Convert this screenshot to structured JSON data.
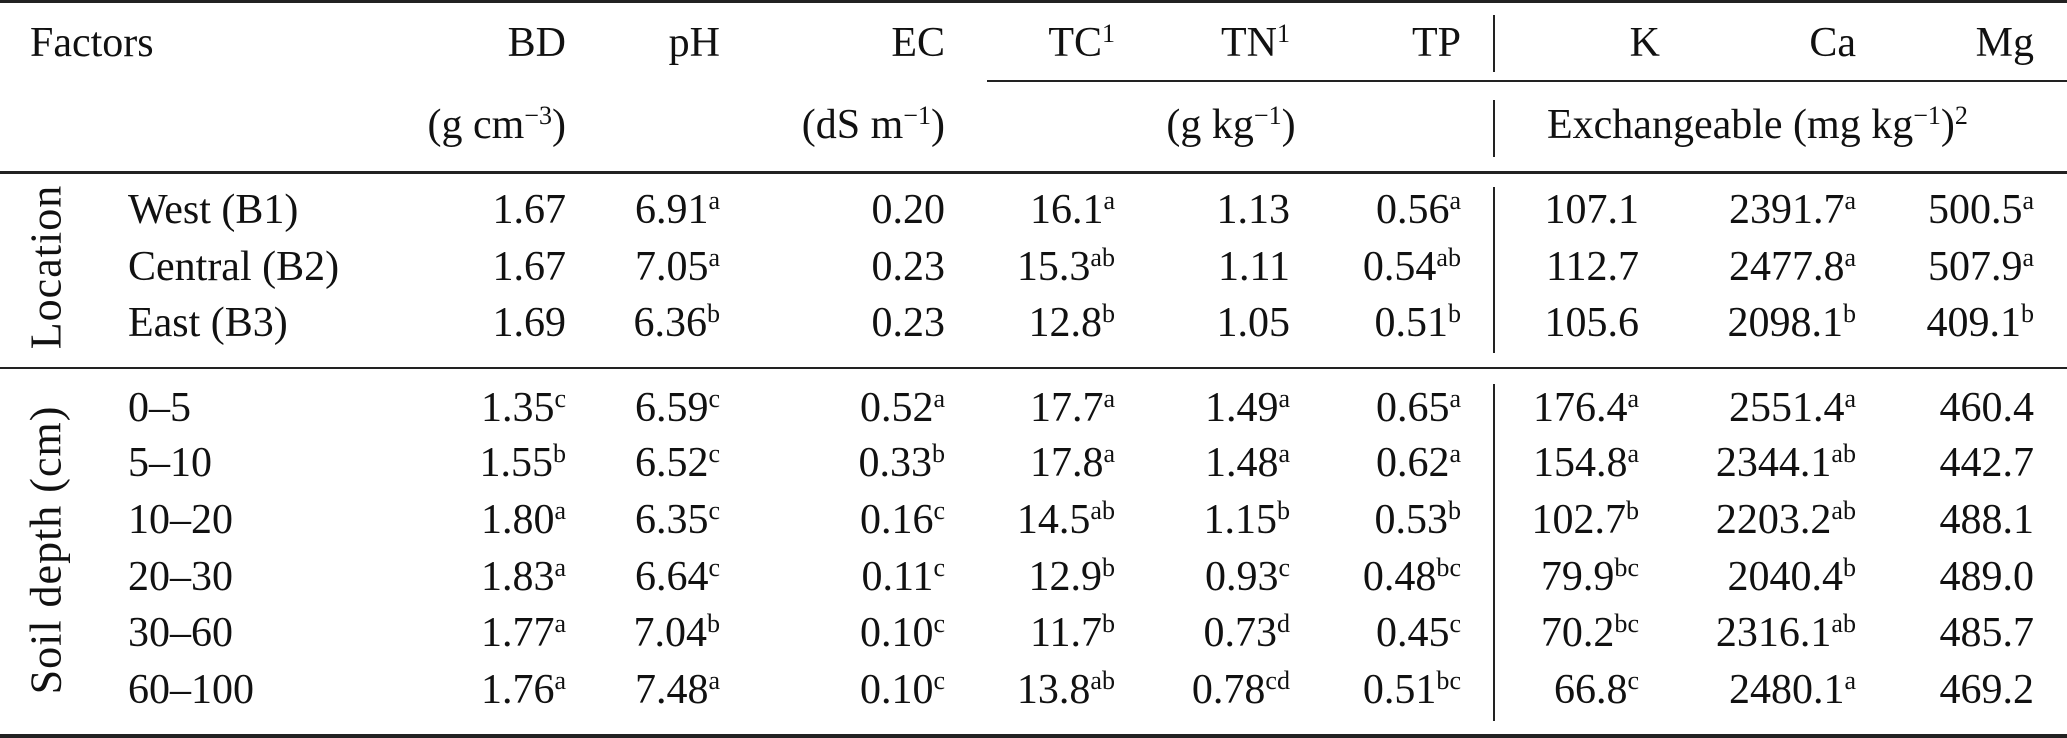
{
  "header": {
    "factors": "Factors",
    "columns": [
      {
        "label": "BD",
        "sup": ""
      },
      {
        "label": "pH",
        "sup": ""
      },
      {
        "label": "EC",
        "sup": ""
      },
      {
        "label": "TC",
        "sup": "1"
      },
      {
        "label": "TN",
        "sup": "1"
      },
      {
        "label": "TP",
        "sup": ""
      },
      {
        "label": "K",
        "sup": ""
      },
      {
        "label": "Ca",
        "sup": ""
      },
      {
        "label": "Mg",
        "sup": ""
      }
    ],
    "units": {
      "bd": {
        "pre": "(g cm",
        "sup": "−3",
        "post": ")"
      },
      "ec": {
        "pre": "(dS m",
        "sup": "−1",
        "post": ")"
      },
      "totals": {
        "pre": "(g kg",
        "sup": "−1",
        "post": ")"
      },
      "exchangeable": {
        "pre": "Exchangeable (mg kg",
        "sup": "−1",
        "post": ")",
        "sup2": "2"
      }
    }
  },
  "groups": [
    {
      "label": "Location",
      "rows": [
        {
          "factor": "West (B1)",
          "values": [
            [
              "1.67",
              ""
            ],
            [
              "6.91",
              "a"
            ],
            [
              "0.20",
              ""
            ],
            [
              "16.1",
              "a"
            ],
            [
              "1.13",
              ""
            ],
            [
              "0.56",
              "a"
            ],
            [
              "107.1",
              ""
            ],
            [
              "2391.7",
              "a"
            ],
            [
              "500.5",
              "a"
            ]
          ]
        },
        {
          "factor": "Central (B2)",
          "values": [
            [
              "1.67",
              ""
            ],
            [
              "7.05",
              "a"
            ],
            [
              "0.23",
              ""
            ],
            [
              "15.3",
              "ab"
            ],
            [
              "1.11",
              ""
            ],
            [
              "0.54",
              "ab"
            ],
            [
              "112.7",
              ""
            ],
            [
              "2477.8",
              "a"
            ],
            [
              "507.9",
              "a"
            ]
          ]
        },
        {
          "factor": "East (B3)",
          "values": [
            [
              "1.69",
              ""
            ],
            [
              "6.36",
              "b"
            ],
            [
              "0.23",
              ""
            ],
            [
              "12.8",
              "b"
            ],
            [
              "1.05",
              ""
            ],
            [
              "0.51",
              "b"
            ],
            [
              "105.6",
              ""
            ],
            [
              "2098.1",
              "b"
            ],
            [
              "409.1",
              "b"
            ]
          ]
        }
      ]
    },
    {
      "label": "Soil depth (cm)",
      "rows": [
        {
          "factor": "0–5",
          "values": [
            [
              "1.35",
              "c"
            ],
            [
              "6.59",
              "c"
            ],
            [
              "0.52",
              "a"
            ],
            [
              "17.7",
              "a"
            ],
            [
              "1.49",
              "a"
            ],
            [
              "0.65",
              "a"
            ],
            [
              "176.4",
              "a"
            ],
            [
              "2551.4",
              "a"
            ],
            [
              "460.4",
              ""
            ]
          ]
        },
        {
          "factor": "5–10",
          "values": [
            [
              "1.55",
              "b"
            ],
            [
              "6.52",
              "c"
            ],
            [
              "0.33",
              "b"
            ],
            [
              "17.8",
              "a"
            ],
            [
              "1.48",
              "a"
            ],
            [
              "0.62",
              "a"
            ],
            [
              "154.8",
              "a"
            ],
            [
              "2344.1",
              "ab"
            ],
            [
              "442.7",
              ""
            ]
          ]
        },
        {
          "factor": "10–20",
          "values": [
            [
              "1.80",
              "a"
            ],
            [
              "6.35",
              "c"
            ],
            [
              "0.16",
              "c"
            ],
            [
              "14.5",
              "ab"
            ],
            [
              "1.15",
              "b"
            ],
            [
              "0.53",
              "b"
            ],
            [
              "102.7",
              "b"
            ],
            [
              "2203.2",
              "ab"
            ],
            [
              "488.1",
              ""
            ]
          ]
        },
        {
          "factor": "20–30",
          "values": [
            [
              "1.83",
              "a"
            ],
            [
              "6.64",
              "c"
            ],
            [
              "0.11",
              "c"
            ],
            [
              "12.9",
              "b"
            ],
            [
              "0.93",
              "c"
            ],
            [
              "0.48",
              "bc"
            ],
            [
              "79.9",
              "bc"
            ],
            [
              "2040.4",
              "b"
            ],
            [
              "489.0",
              ""
            ]
          ]
        },
        {
          "factor": "30–60",
          "values": [
            [
              "1.77",
              "a"
            ],
            [
              "7.04",
              "b"
            ],
            [
              "0.10",
              "c"
            ],
            [
              "11.7",
              "b"
            ],
            [
              "0.73",
              "d"
            ],
            [
              "0.45",
              "c"
            ],
            [
              "70.2",
              "bc"
            ],
            [
              "2316.1",
              "ab"
            ],
            [
              "485.7",
              ""
            ]
          ]
        },
        {
          "factor": "60–100",
          "values": [
            [
              "1.76",
              "a"
            ],
            [
              "7.48",
              "a"
            ],
            [
              "0.10",
              "c"
            ],
            [
              "13.8",
              "ab"
            ],
            [
              "0.78",
              "cd"
            ],
            [
              "0.51",
              "bc"
            ],
            [
              "66.8",
              "c"
            ],
            [
              "2480.1",
              "a"
            ],
            [
              "469.2",
              ""
            ]
          ]
        }
      ]
    }
  ]
}
